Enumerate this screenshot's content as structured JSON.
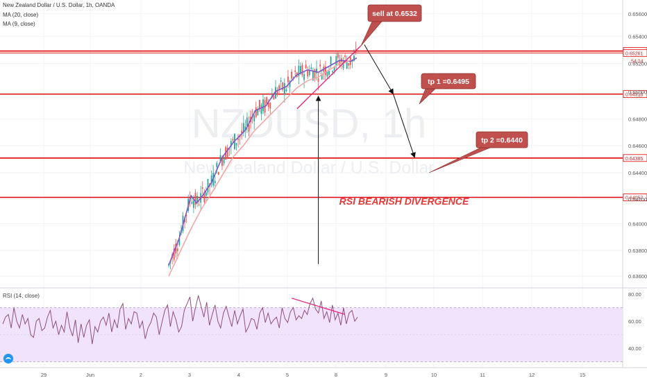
{
  "header": {
    "symbol_line": "New Zealand Dollar / U.S. Dollar, 1h, OANDA",
    "ma20": "MA (20, close)",
    "ma9": "MA (9, close)",
    "rsi": "RSI (14, close)"
  },
  "watermark": {
    "ticker": "NZDUSD, 1h",
    "name": "New Zealand Dollar / U.S. Dollar"
  },
  "colors": {
    "level_line": "#e00000",
    "ma20": "#f4a6a6",
    "ma9": "#7e57c2",
    "candle_up": "#26a69a",
    "candle_down": "#ef5350",
    "rsi_line": "#8e4f7e",
    "rsi_fill": "#f1e3fb",
    "trend": "#e91e78",
    "callout_fill": "#c0504d",
    "callout_text": "#ffffff",
    "annotation_text": "#e53935",
    "axis_text": "#555555"
  },
  "price_levels": [
    {
      "price": 0.65277,
      "label": "0.65277",
      "style": "white"
    },
    {
      "price": 0.65261,
      "label": "0.65261",
      "style": "white"
    },
    {
      "price": 0.64918,
      "label": "0.64918",
      "style": "white"
    },
    {
      "price": 0.64385,
      "label": "0.64385",
      "style": "white"
    },
    {
      "price": 0.64057,
      "label": "0.64057",
      "style": "white"
    }
  ],
  "countdown_label": "54:24",
  "callouts": [
    {
      "text": "sell at 0.6532"
    },
    {
      "text": "tp 1 =0.6495"
    },
    {
      "text": "tp 2 =0.6440"
    }
  ],
  "annotation": "RSI BEARISH DIVERGENCE",
  "chart_data": {
    "type": "candlestick",
    "title": "New Zealand Dollar / U.S. Dollar, 1h, OANDA",
    "price_axis": {
      "ticks": [
        "0.65600",
        "0.65400",
        "0.65200",
        "0.65000",
        "0.64800",
        "0.64600",
        "0.64400",
        "0.64200",
        "0.64000",
        "0.63800",
        "0.63600"
      ],
      "range": [
        0.635,
        0.657
      ]
    },
    "rsi_axis": {
      "ticks": [
        "80.00",
        "60.00",
        "40.00"
      ],
      "range": [
        28,
        86
      ],
      "band": [
        30,
        70
      ]
    },
    "x_axis": {
      "labels": [
        "29",
        "Jun",
        "2",
        "3",
        "4",
        "5",
        "8",
        "9",
        "10",
        "11",
        "12",
        "15"
      ]
    },
    "series": [
      {
        "name": "MA (9, close)",
        "points": [
          [
            0.0,
            0.6349
          ],
          [
            1.0,
            0.6372
          ],
          [
            2.1,
            0.6407
          ],
          [
            2.6,
            0.6401
          ],
          [
            3.0,
            0.6405
          ],
          [
            4.0,
            0.6418
          ],
          [
            5.0,
            0.6439
          ],
          [
            6.1,
            0.6452
          ],
          [
            7.2,
            0.6462
          ],
          [
            8.1,
            0.6478
          ],
          [
            9.1,
            0.6482
          ],
          [
            10.0,
            0.6494
          ],
          [
            11.0,
            0.6498
          ],
          [
            12.0,
            0.6508
          ],
          [
            13.0,
            0.6512
          ],
          [
            14.0,
            0.651
          ],
          [
            15.0,
            0.6515
          ],
          [
            16.0,
            0.652
          ],
          [
            17.0,
            0.6519
          ],
          [
            17.6,
            0.6522
          ]
        ]
      },
      {
        "name": "MA (20, close)",
        "points": [
          [
            0.0,
            0.634
          ],
          [
            2.0,
            0.6378
          ],
          [
            3.0,
            0.6395
          ],
          [
            4.0,
            0.6409
          ],
          [
            5.0,
            0.6424
          ],
          [
            6.0,
            0.6439
          ],
          [
            7.0,
            0.6449
          ],
          [
            8.0,
            0.6461
          ],
          [
            9.0,
            0.647
          ],
          [
            10.0,
            0.6479
          ],
          [
            11.0,
            0.6488
          ],
          [
            12.0,
            0.6497
          ],
          [
            13.0,
            0.6503
          ],
          [
            14.0,
            0.6506
          ],
          [
            15.0,
            0.6512
          ],
          [
            16.0,
            0.6517
          ],
          [
            17.0,
            0.652
          ]
        ]
      },
      {
        "name": "RSI (14, close)",
        "values": [
          58,
          63,
          65,
          55,
          70,
          60,
          55,
          65,
          58,
          62,
          50,
          48,
          60,
          62,
          53,
          55,
          63,
          68,
          55,
          60,
          50,
          57,
          52,
          67,
          55,
          49,
          61,
          44,
          58,
          48,
          57,
          61,
          43,
          56,
          52,
          60,
          63,
          57,
          66,
          52,
          61,
          55,
          69,
          73,
          54,
          62,
          58,
          67,
          66,
          55,
          60,
          47,
          55,
          59,
          66,
          63,
          50,
          59,
          68,
          72,
          56,
          67,
          61,
          52,
          56,
          68,
          73,
          78,
          60,
          70,
          79,
          71,
          63,
          74,
          57,
          65,
          72,
          60,
          55,
          66,
          71,
          63,
          56,
          68,
          58,
          64,
          69,
          52,
          56,
          62,
          61,
          54,
          66,
          70,
          59,
          66,
          58,
          61,
          63,
          55,
          70,
          62,
          59,
          67,
          70,
          61,
          64,
          62,
          68,
          65,
          73,
          77,
          69,
          66,
          75,
          62,
          67,
          59,
          72,
          61,
          66,
          57,
          70,
          58,
          66,
          68,
          60,
          63
        ]
      }
    ],
    "annotation_lines": [
      {
        "name": "support-trendline",
        "from": [
          12.0,
          0.64795
        ],
        "to": [
          18.0,
          0.65323
        ]
      },
      {
        "name": "sell-arrow-1",
        "from": [
          18.3,
          0.6533
        ],
        "to": [
          21.0,
          0.6492
        ]
      },
      {
        "name": "sell-arrow-2",
        "from": [
          21.0,
          0.6492
        ],
        "to": [
          23.0,
          0.6439
        ]
      },
      {
        "name": "divergence-up-arrow",
        "from": [
          14.0,
          0.635
        ],
        "to": [
          14.0,
          0.649
        ]
      },
      {
        "name": "rsi-divergence-line",
        "from_rsi": [
          11.5,
          77
        ],
        "to_rsi": [
          16.5,
          65
        ]
      }
    ]
  }
}
